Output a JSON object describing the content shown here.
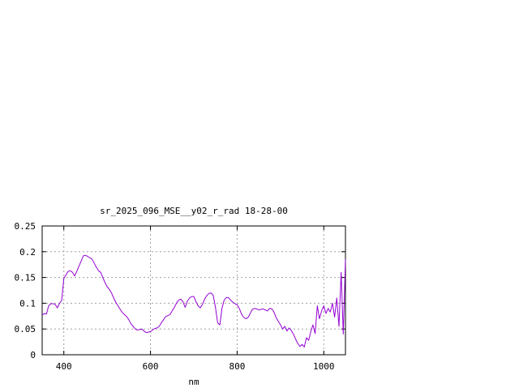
{
  "chart_data": {
    "type": "line",
    "title": "sr_2025_096_MSE__y02_r_rad 18-28-00",
    "xlabel": "nm",
    "ylabel": "",
    "xlim": [
      350,
      1050
    ],
    "ylim": [
      0,
      0.25
    ],
    "x_ticks": [
      400,
      600,
      800,
      1000
    ],
    "x_tick_labels": [
      "400",
      "600",
      "800",
      "1000"
    ],
    "y_ticks": [
      0,
      0.05,
      0.1,
      0.15,
      0.2,
      0.25
    ],
    "y_tick_labels": [
      "0",
      "0.05",
      "0.1",
      "0.15",
      "0.2",
      "0.25"
    ],
    "grid": true,
    "legend": "none",
    "series": [
      {
        "color": "#9400d3",
        "x": [
          350,
          355,
          360,
          365,
          370,
          375,
          380,
          385,
          390,
          395,
          400,
          405,
          410,
          415,
          420,
          425,
          430,
          435,
          440,
          445,
          450,
          455,
          460,
          465,
          470,
          475,
          480,
          485,
          490,
          495,
          500,
          505,
          510,
          515,
          520,
          525,
          530,
          535,
          540,
          545,
          550,
          555,
          560,
          565,
          570,
          575,
          580,
          585,
          590,
          595,
          600,
          605,
          610,
          615,
          620,
          625,
          630,
          635,
          640,
          645,
          650,
          655,
          660,
          665,
          670,
          675,
          680,
          685,
          690,
          695,
          700,
          705,
          710,
          715,
          720,
          725,
          730,
          735,
          740,
          745,
          750,
          755,
          760,
          765,
          770,
          775,
          780,
          785,
          790,
          795,
          800,
          805,
          810,
          815,
          820,
          825,
          830,
          835,
          840,
          845,
          850,
          855,
          860,
          865,
          870,
          875,
          880,
          885,
          890,
          895,
          900,
          905,
          910,
          915,
          920,
          925,
          930,
          935,
          940,
          945,
          950,
          955,
          960,
          965,
          970,
          975,
          980,
          985,
          990,
          995,
          1000,
          1005,
          1010,
          1015,
          1020,
          1025,
          1030,
          1035,
          1040,
          1045,
          1050
        ],
        "values": [
          0.077,
          0.08,
          0.079,
          0.095,
          0.099,
          0.099,
          0.098,
          0.091,
          0.1,
          0.105,
          0.148,
          0.155,
          0.162,
          0.163,
          0.16,
          0.153,
          0.162,
          0.172,
          0.182,
          0.192,
          0.193,
          0.191,
          0.188,
          0.186,
          0.178,
          0.17,
          0.163,
          0.16,
          0.15,
          0.14,
          0.132,
          0.127,
          0.12,
          0.11,
          0.102,
          0.095,
          0.088,
          0.082,
          0.078,
          0.074,
          0.068,
          0.06,
          0.055,
          0.05,
          0.048,
          0.049,
          0.05,
          0.046,
          0.043,
          0.044,
          0.045,
          0.048,
          0.051,
          0.052,
          0.055,
          0.062,
          0.068,
          0.074,
          0.076,
          0.078,
          0.085,
          0.092,
          0.1,
          0.106,
          0.108,
          0.103,
          0.092,
          0.104,
          0.11,
          0.113,
          0.113,
          0.103,
          0.095,
          0.091,
          0.098,
          0.108,
          0.115,
          0.119,
          0.12,
          0.115,
          0.092,
          0.062,
          0.058,
          0.09,
          0.106,
          0.111,
          0.111,
          0.106,
          0.102,
          0.099,
          0.097,
          0.09,
          0.079,
          0.073,
          0.07,
          0.072,
          0.08,
          0.088,
          0.09,
          0.089,
          0.087,
          0.088,
          0.089,
          0.087,
          0.085,
          0.09,
          0.089,
          0.083,
          0.072,
          0.065,
          0.058,
          0.05,
          0.055,
          0.046,
          0.052,
          0.047,
          0.04,
          0.03,
          0.022,
          0.016,
          0.02,
          0.015,
          0.033,
          0.028,
          0.045,
          0.058,
          0.041,
          0.095,
          0.07,
          0.085,
          0.095,
          0.08,
          0.09,
          0.083,
          0.1,
          0.073,
          0.11,
          0.055,
          0.16,
          0.04,
          0.185
        ]
      }
    ]
  }
}
